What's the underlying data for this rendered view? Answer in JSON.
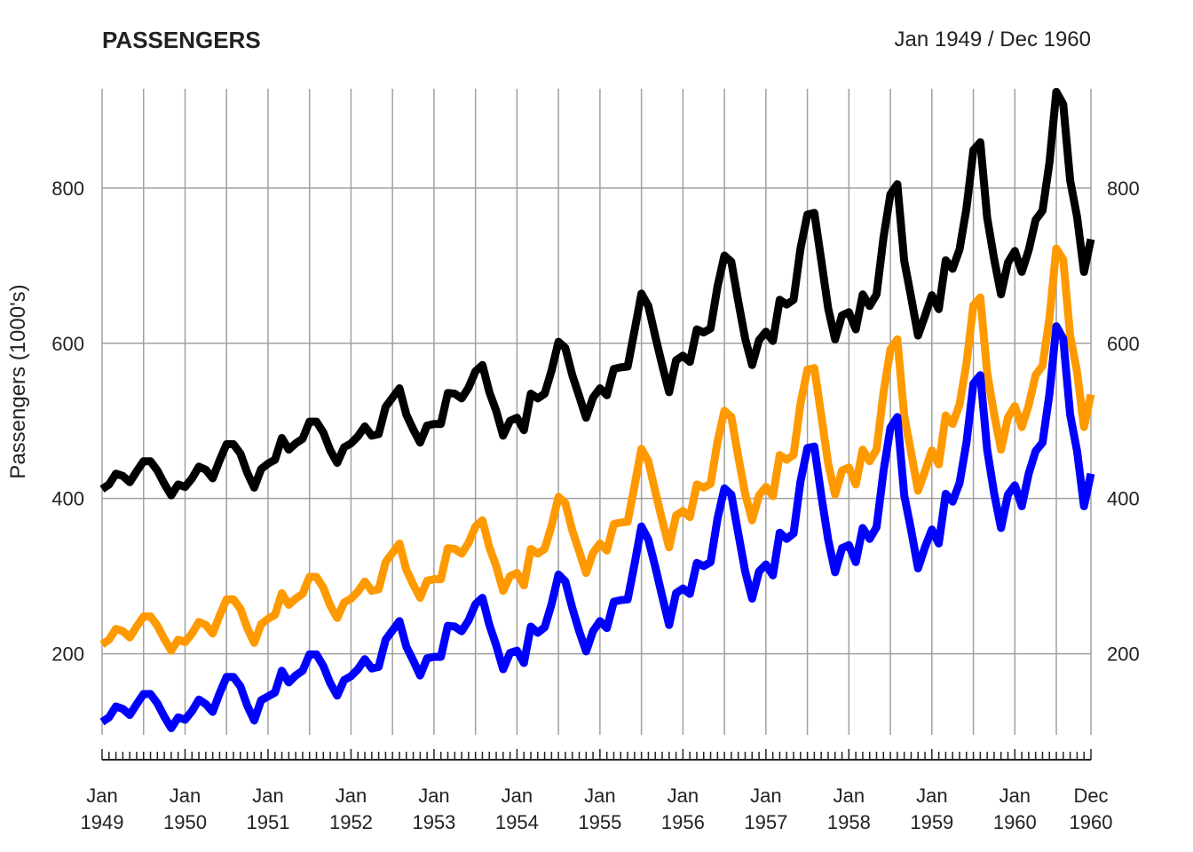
{
  "chart_data": {
    "type": "line",
    "title": "PASSENGERS",
    "date_range": "Jan 1949 / Dec 1960",
    "ylabel": "Passengers (1000's)",
    "ylim": [
      84,
      928
    ],
    "yticks": [
      200,
      400,
      600,
      800
    ],
    "grid": true,
    "x_start": "Jan 1949",
    "x_end": "Dec 1960",
    "x_tick_labels": [
      {
        "month": "Jan",
        "year": "1949",
        "index": 0
      },
      {
        "month": "Jan",
        "year": "1950",
        "index": 12
      },
      {
        "month": "Jan",
        "year": "1951",
        "index": 24
      },
      {
        "month": "Jan",
        "year": "1952",
        "index": 36
      },
      {
        "month": "Jan",
        "year": "1953",
        "index": 48
      },
      {
        "month": "Jan",
        "year": "1954",
        "index": 60
      },
      {
        "month": "Jan",
        "year": "1955",
        "index": 72
      },
      {
        "month": "Jan",
        "year": "1956",
        "index": 84
      },
      {
        "month": "Jan",
        "year": "1957",
        "index": 96
      },
      {
        "month": "Jan",
        "year": "1958",
        "index": 108
      },
      {
        "month": "Jan",
        "year": "1959",
        "index": 120
      },
      {
        "month": "Jan",
        "year": "1960",
        "index": 132
      },
      {
        "month": "Dec",
        "year": "1960",
        "index": 143
      }
    ],
    "series": [
      {
        "color": "#000000",
        "values": [
          412,
          418,
          432,
          429,
          421,
          435,
          448,
          448,
          436,
          419,
          404,
          418,
          415,
          426,
          441,
          437,
          426,
          449,
          470,
          470,
          458,
          433,
          414,
          438,
          445,
          450,
          478,
          463,
          471,
          477,
          499,
          499,
          485,
          462,
          446,
          466,
          471,
          480,
          493,
          481,
          483,
          518,
          530,
          542,
          508,
          489,
          472,
          494,
          496,
          496,
          536,
          535,
          529,
          543,
          564,
          572,
          537,
          513,
          481,
          500,
          504,
          488,
          535,
          529,
          535,
          565,
          602,
          594,
          559,
          532,
          504,
          530,
          542,
          533,
          567,
          569,
          570,
          616,
          664,
          648,
          609,
          572,
          537,
          578,
          584,
          576,
          618,
          614,
          619,
          673,
          713,
          705,
          654,
          606,
          572,
          604,
          615,
          603,
          656,
          650,
          656,
          722,
          766,
          768,
          707,
          645,
          605,
          636,
          640,
          618,
          663,
          648,
          663,
          736,
          792,
          805,
          706,
          659,
          610,
          635,
          662,
          644,
          707,
          696,
          721,
          774,
          849,
          859,
          762,
          709,
          663,
          704,
          719,
          692,
          720,
          759,
          771,
          833,
          924,
          908,
          810,
          763,
          692,
          734
        ]
      },
      {
        "color": "#FF9900",
        "values": [
          212,
          218,
          232,
          229,
          221,
          235,
          248,
          248,
          236,
          219,
          204,
          218,
          215,
          226,
          241,
          237,
          226,
          249,
          270,
          270,
          258,
          233,
          214,
          238,
          245,
          250,
          278,
          263,
          271,
          277,
          299,
          299,
          285,
          262,
          246,
          266,
          271,
          280,
          293,
          281,
          283,
          318,
          330,
          342,
          308,
          289,
          272,
          294,
          296,
          296,
          336,
          335,
          329,
          343,
          364,
          372,
          337,
          313,
          281,
          300,
          304,
          288,
          335,
          329,
          335,
          365,
          402,
          394,
          359,
          332,
          304,
          330,
          342,
          333,
          367,
          369,
          370,
          416,
          464,
          448,
          409,
          372,
          337,
          378,
          384,
          376,
          418,
          414,
          419,
          473,
          513,
          505,
          454,
          406,
          372,
          404,
          415,
          403,
          456,
          450,
          456,
          522,
          566,
          568,
          507,
          445,
          405,
          436,
          440,
          418,
          463,
          448,
          463,
          536,
          592,
          605,
          506,
          459,
          410,
          435,
          462,
          444,
          507,
          496,
          521,
          574,
          649,
          659,
          562,
          509,
          463,
          504,
          519,
          492,
          520,
          559,
          571,
          633,
          722,
          708,
          610,
          563,
          492,
          534
        ]
      },
      {
        "color": "#0000FF",
        "values": [
          112,
          118,
          132,
          129,
          121,
          135,
          148,
          148,
          136,
          119,
          104,
          118,
          115,
          126,
          141,
          135,
          125,
          149,
          170,
          170,
          158,
          133,
          114,
          140,
          145,
          150,
          178,
          163,
          172,
          178,
          199,
          199,
          184,
          162,
          146,
          166,
          171,
          180,
          193,
          181,
          183,
          218,
          230,
          242,
          209,
          191,
          172,
          194,
          196,
          196,
          236,
          235,
          229,
          243,
          264,
          272,
          237,
          211,
          180,
          201,
          204,
          188,
          235,
          227,
          234,
          264,
          302,
          293,
          259,
          229,
          203,
          229,
          242,
          233,
          267,
          269,
          270,
          315,
          364,
          347,
          312,
          274,
          237,
          278,
          284,
          277,
          317,
          313,
          318,
          374,
          413,
          405,
          355,
          306,
          271,
          306,
          315,
          301,
          356,
          348,
          355,
          422,
          465,
          467,
          404,
          347,
          305,
          336,
          340,
          318,
          362,
          348,
          363,
          435,
          491,
          505,
          404,
          359,
          310,
          337,
          360,
          342,
          406,
          396,
          420,
          472,
          548,
          559,
          463,
          407,
          362,
          405,
          417,
          390,
          432,
          461,
          472,
          535,
          622,
          606,
          508,
          461,
          390,
          432
        ]
      }
    ]
  }
}
